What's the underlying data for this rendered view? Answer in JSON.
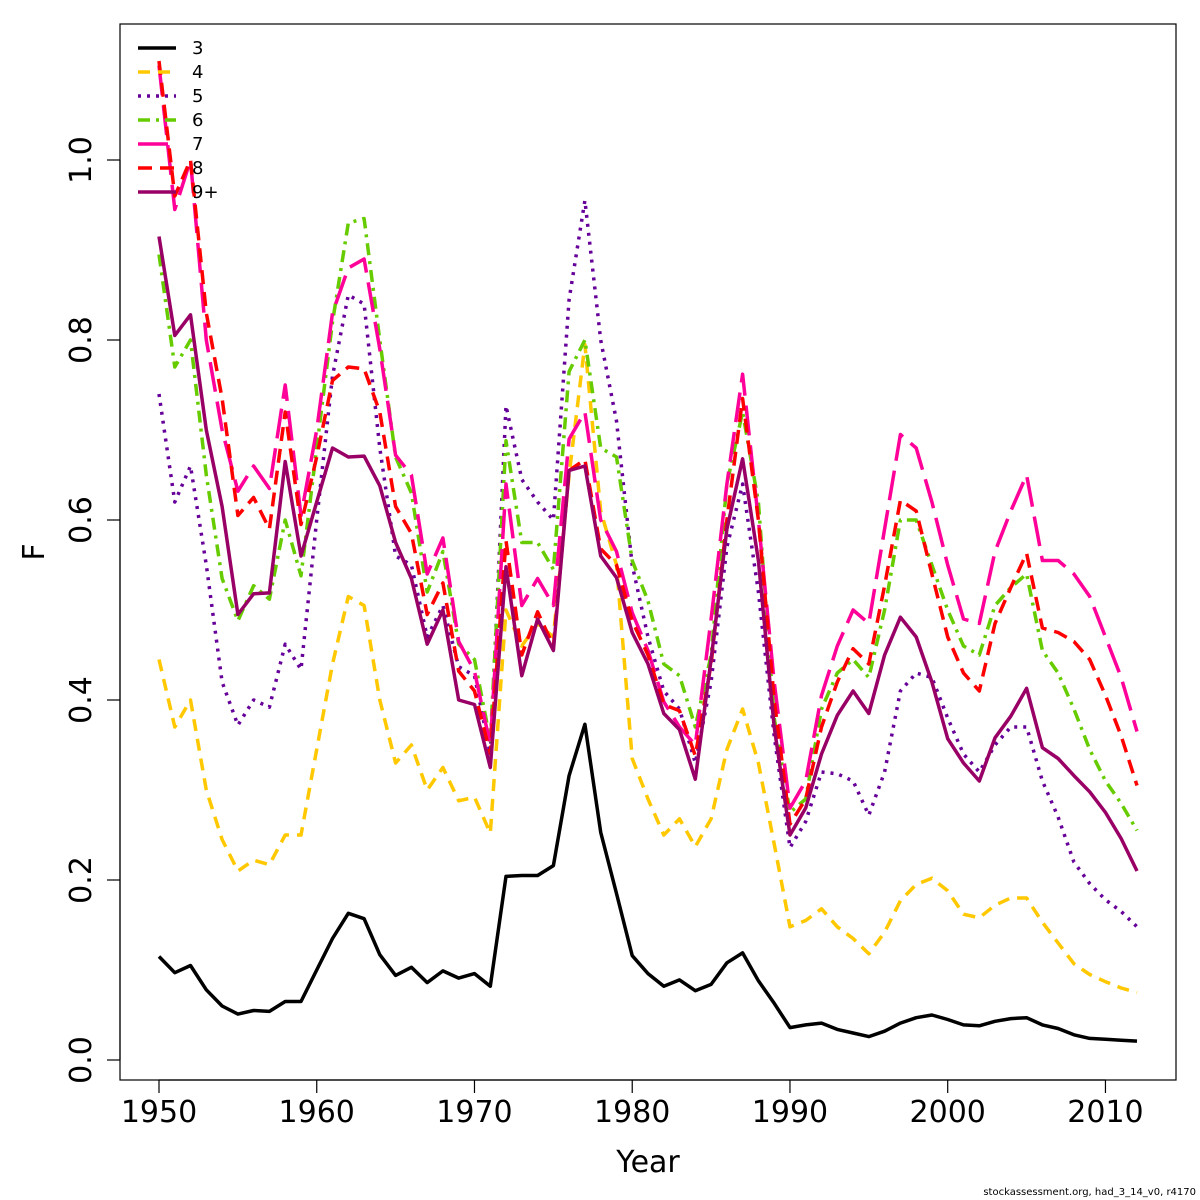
{
  "chart_data": {
    "type": "line",
    "title": "",
    "xlabel": "Year",
    "ylabel": "F",
    "xlim": [
      1950,
      2012
    ],
    "ylim": [
      0,
      1.1
    ],
    "x_ticks": [
      1950,
      1960,
      1970,
      1980,
      1990,
      2000,
      2010
    ],
    "x_tick_labels": [
      "1950",
      "1960",
      "1970",
      "1980",
      "1990",
      "2000",
      "2010"
    ],
    "y_ticks": [
      0,
      0.2,
      0.4,
      0.6,
      0.8,
      1.0
    ],
    "y_tick_labels": [
      "0.0",
      "0.2",
      "0.4",
      "0.6",
      "0.8",
      "1.0"
    ],
    "grid": false,
    "legend_position": "top-left",
    "x": [
      1950,
      1951,
      1952,
      1953,
      1954,
      1955,
      1956,
      1957,
      1958,
      1959,
      1960,
      1961,
      1962,
      1963,
      1964,
      1965,
      1966,
      1967,
      1968,
      1969,
      1970,
      1971,
      1972,
      1973,
      1974,
      1975,
      1976,
      1977,
      1978,
      1979,
      1980,
      1981,
      1982,
      1983,
      1984,
      1985,
      1986,
      1987,
      1988,
      1989,
      1990,
      1991,
      1992,
      1993,
      1994,
      1995,
      1996,
      1997,
      1998,
      1999,
      2000,
      2001,
      2002,
      2003,
      2004,
      2005,
      2006,
      2007,
      2008,
      2009,
      2010,
      2011,
      2012
    ],
    "series": [
      {
        "name": "3",
        "color": "#000000",
        "dash": "",
        "width": 3.5,
        "values": [
          0.115,
          0.097,
          0.105,
          0.078,
          0.06,
          0.051,
          0.055,
          0.054,
          0.065,
          0.065,
          0.1,
          0.135,
          0.163,
          0.157,
          0.117,
          0.094,
          0.103,
          0.086,
          0.099,
          0.091,
          0.096,
          0.082,
          0.204,
          0.205,
          0.205,
          0.216,
          0.316,
          0.373,
          0.253,
          0.185,
          0.116,
          0.096,
          0.082,
          0.089,
          0.077,
          0.084,
          0.108,
          0.119,
          0.088,
          0.063,
          0.036,
          0.039,
          0.041,
          0.034,
          0.03,
          0.026,
          0.032,
          0.041,
          0.047,
          0.05,
          0.045,
          0.039,
          0.038,
          0.043,
          0.046,
          0.047,
          0.039,
          0.035,
          0.028,
          0.024,
          0.023,
          0.022,
          0.021
        ]
      },
      {
        "name": "4",
        "color": "#ffc800",
        "dash": "12,8",
        "width": 3.5,
        "values": [
          0.445,
          0.37,
          0.4,
          0.3,
          0.245,
          0.21,
          0.222,
          0.217,
          0.25,
          0.25,
          0.345,
          0.44,
          0.515,
          0.505,
          0.4,
          0.33,
          0.35,
          0.3,
          0.325,
          0.288,
          0.292,
          0.252,
          0.5,
          0.46,
          0.485,
          0.47,
          0.65,
          0.795,
          0.61,
          0.55,
          0.335,
          0.29,
          0.25,
          0.268,
          0.237,
          0.268,
          0.345,
          0.39,
          0.33,
          0.24,
          0.148,
          0.155,
          0.168,
          0.148,
          0.135,
          0.118,
          0.142,
          0.177,
          0.195,
          0.202,
          0.188,
          0.162,
          0.158,
          0.172,
          0.18,
          0.18,
          0.153,
          0.13,
          0.107,
          0.095,
          0.087,
          0.08,
          0.075
        ]
      },
      {
        "name": "5",
        "color": "#660099",
        "dash": "3,6",
        "width": 3.5,
        "values": [
          0.74,
          0.62,
          0.66,
          0.55,
          0.42,
          0.372,
          0.4,
          0.392,
          0.462,
          0.434,
          0.6,
          0.76,
          0.85,
          0.84,
          0.68,
          0.56,
          0.55,
          0.47,
          0.505,
          0.437,
          0.427,
          0.34,
          0.727,
          0.645,
          0.62,
          0.6,
          0.845,
          0.955,
          0.8,
          0.71,
          0.55,
          0.47,
          0.41,
          0.39,
          0.33,
          0.42,
          0.57,
          0.64,
          0.52,
          0.36,
          0.236,
          0.265,
          0.32,
          0.318,
          0.31,
          0.272,
          0.32,
          0.41,
          0.43,
          0.425,
          0.38,
          0.34,
          0.32,
          0.35,
          0.37,
          0.37,
          0.31,
          0.27,
          0.22,
          0.196,
          0.178,
          0.165,
          0.148
        ]
      },
      {
        "name": "6",
        "color": "#66cc00",
        "dash": "12,6,3,6",
        "width": 3.5,
        "values": [
          0.895,
          0.77,
          0.8,
          0.65,
          0.535,
          0.488,
          0.527,
          0.512,
          0.6,
          0.538,
          0.68,
          0.82,
          0.93,
          0.935,
          0.8,
          0.67,
          0.63,
          0.52,
          0.565,
          0.462,
          0.445,
          0.355,
          0.688,
          0.575,
          0.575,
          0.545,
          0.765,
          0.8,
          0.68,
          0.67,
          0.555,
          0.51,
          0.44,
          0.427,
          0.37,
          0.45,
          0.64,
          0.72,
          0.62,
          0.38,
          0.275,
          0.29,
          0.39,
          0.43,
          0.445,
          0.425,
          0.5,
          0.6,
          0.6,
          0.55,
          0.5,
          0.46,
          0.45,
          0.505,
          0.525,
          0.54,
          0.455,
          0.43,
          0.39,
          0.345,
          0.31,
          0.285,
          0.255
        ]
      },
      {
        "name": "7",
        "color": "#ff0099",
        "dash": "30,10",
        "width": 3.5,
        "values": [
          1.105,
          0.945,
          1.0,
          0.8,
          0.7,
          0.632,
          0.66,
          0.635,
          0.75,
          0.605,
          0.7,
          0.83,
          0.88,
          0.89,
          0.79,
          0.672,
          0.65,
          0.54,
          0.58,
          0.465,
          0.432,
          0.35,
          0.64,
          0.505,
          0.535,
          0.505,
          0.69,
          0.72,
          0.6,
          0.565,
          0.497,
          0.455,
          0.398,
          0.37,
          0.35,
          0.49,
          0.64,
          0.762,
          0.6,
          0.42,
          0.28,
          0.31,
          0.405,
          0.46,
          0.5,
          0.485,
          0.59,
          0.695,
          0.68,
          0.62,
          0.55,
          0.49,
          0.485,
          0.565,
          0.61,
          0.65,
          0.555,
          0.555,
          0.54,
          0.515,
          0.47,
          0.425,
          0.365
        ]
      },
      {
        "name": "8",
        "color": "#ff0000",
        "dash": "14,8",
        "width": 3.5,
        "values": [
          1.11,
          0.96,
          1.0,
          0.83,
          0.735,
          0.605,
          0.625,
          0.59,
          0.72,
          0.595,
          0.67,
          0.755,
          0.77,
          0.768,
          0.72,
          0.615,
          0.585,
          0.495,
          0.53,
          0.432,
          0.41,
          0.34,
          0.577,
          0.45,
          0.498,
          0.46,
          0.655,
          0.667,
          0.568,
          0.55,
          0.488,
          0.45,
          0.395,
          0.388,
          0.338,
          0.44,
          0.6,
          0.735,
          0.6,
          0.4,
          0.262,
          0.29,
          0.37,
          0.42,
          0.457,
          0.44,
          0.527,
          0.622,
          0.61,
          0.54,
          0.47,
          0.43,
          0.41,
          0.485,
          0.525,
          0.563,
          0.48,
          0.475,
          0.465,
          0.445,
          0.405,
          0.36,
          0.305
        ]
      },
      {
        "name": "9+",
        "color": "#990066",
        "dash": "",
        "width": 3.5,
        "values": [
          0.915,
          0.805,
          0.828,
          0.7,
          0.615,
          0.495,
          0.518,
          0.519,
          0.665,
          0.56,
          0.62,
          0.68,
          0.67,
          0.671,
          0.638,
          0.575,
          0.535,
          0.462,
          0.5,
          0.4,
          0.395,
          0.325,
          0.548,
          0.427,
          0.49,
          0.455,
          0.655,
          0.66,
          0.56,
          0.536,
          0.475,
          0.44,
          0.385,
          0.367,
          0.312,
          0.445,
          0.59,
          0.668,
          0.555,
          0.37,
          0.25,
          0.28,
          0.34,
          0.383,
          0.41,
          0.385,
          0.45,
          0.492,
          0.47,
          0.42,
          0.357,
          0.33,
          0.31,
          0.358,
          0.382,
          0.413,
          0.347,
          0.335,
          0.316,
          0.298,
          0.275,
          0.246,
          0.21
        ]
      }
    ]
  },
  "footer": {
    "credit": "stockassessment.org, had_3_14_v0, r4170"
  }
}
